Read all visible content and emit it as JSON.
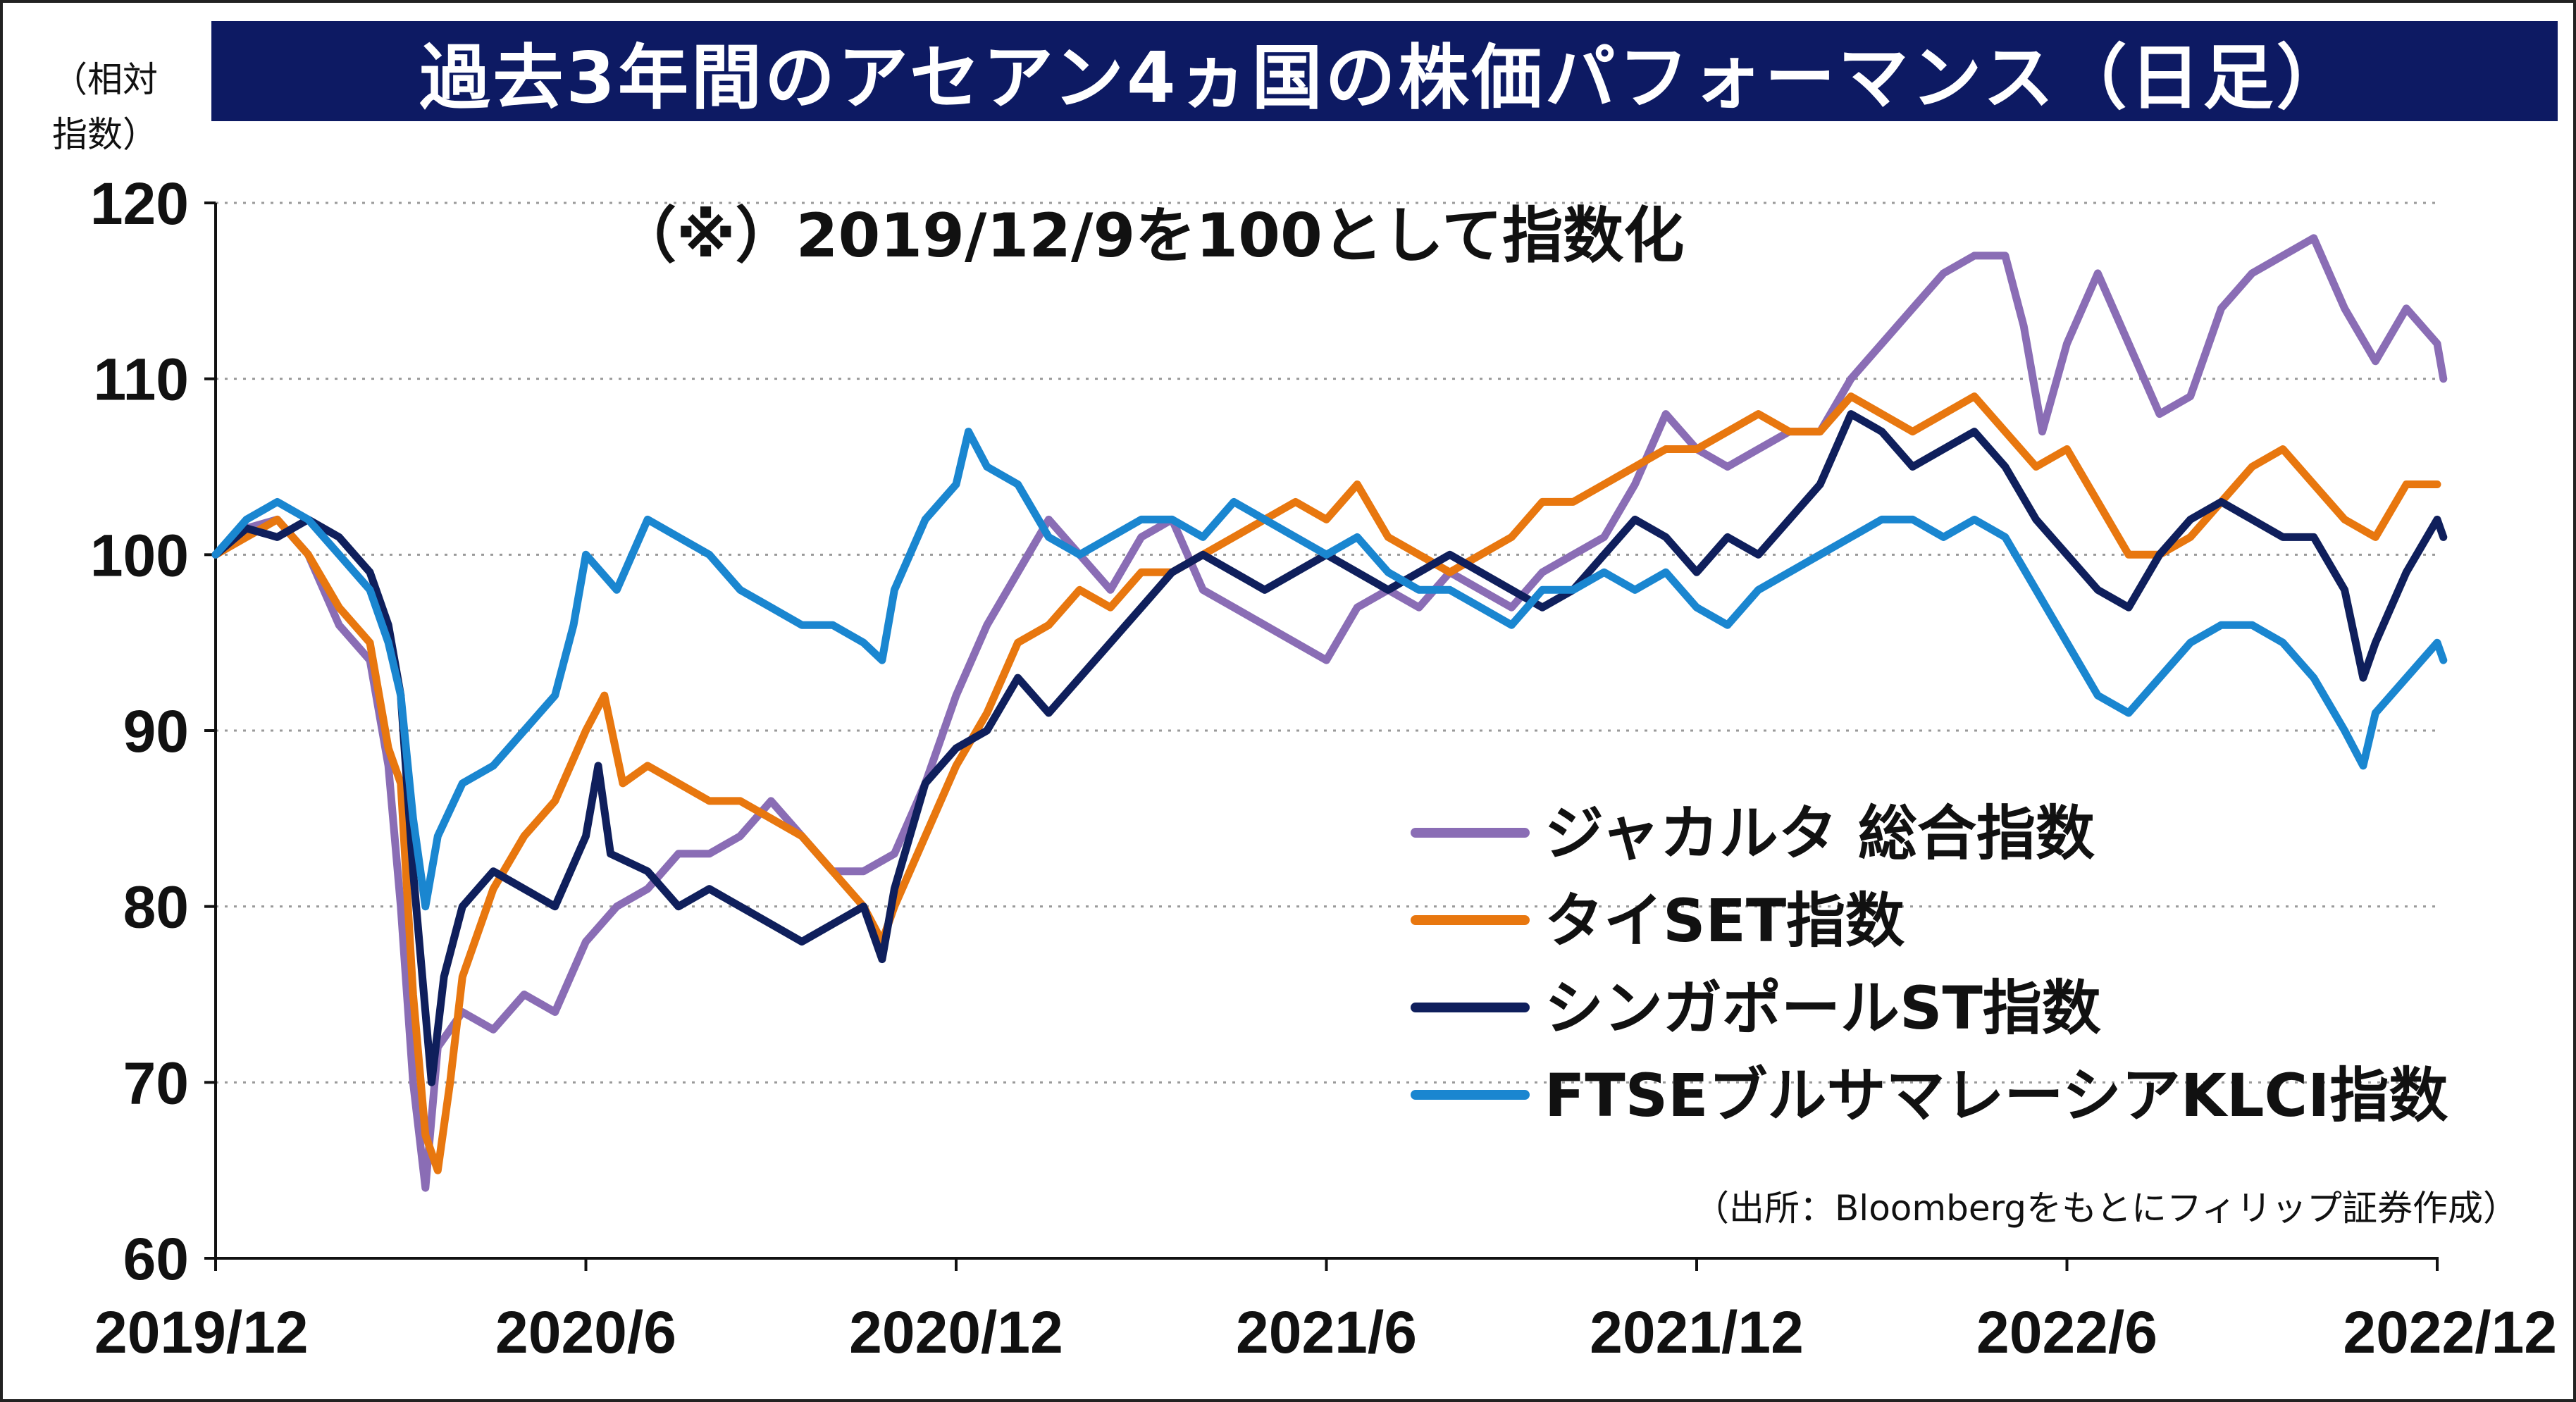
{
  "title": "過去3年間のアセアン4ヵ国の株価パフォーマンス（日足）",
  "unit_label": "（相対\n指数）",
  "note": "（※）2019/12/9を100として指数化",
  "source": "（出所：Bloombergをもとにフィリップ証券作成）",
  "chart_data": {
    "type": "line",
    "ylim": [
      60,
      120
    ],
    "yticks": [
      60,
      70,
      80,
      90,
      100,
      110,
      120
    ],
    "xlim": [
      0,
      36
    ],
    "xtick_labels": [
      "2019/12",
      "2020/6",
      "2020/12",
      "2021/6",
      "2021/12",
      "2022/6",
      "2022/12"
    ],
    "xtick_positions": [
      0,
      6,
      12,
      18,
      24,
      30,
      36
    ],
    "grid": "horizontal dotted",
    "legend_placement": "lower-right",
    "series": [
      {
        "name": "ジャカルタ 総合指数",
        "color": "#8a6db5",
        "points": [
          [
            0,
            100
          ],
          [
            0.5,
            101.5
          ],
          [
            1,
            102
          ],
          [
            1.5,
            100
          ],
          [
            2,
            96
          ],
          [
            2.5,
            94
          ],
          [
            2.8,
            88
          ],
          [
            3,
            80
          ],
          [
            3.2,
            70
          ],
          [
            3.4,
            64
          ],
          [
            3.6,
            72
          ],
          [
            4,
            74
          ],
          [
            4.5,
            73
          ],
          [
            5,
            75
          ],
          [
            5.5,
            74
          ],
          [
            6,
            78
          ],
          [
            6.5,
            80
          ],
          [
            7,
            81
          ],
          [
            7.5,
            83
          ],
          [
            8,
            83
          ],
          [
            8.5,
            84
          ],
          [
            9,
            86
          ],
          [
            9.5,
            84
          ],
          [
            10,
            82
          ],
          [
            10.5,
            82
          ],
          [
            11,
            83
          ],
          [
            11.5,
            87
          ],
          [
            12,
            92
          ],
          [
            12.5,
            96
          ],
          [
            13,
            99
          ],
          [
            13.5,
            102
          ],
          [
            14,
            100
          ],
          [
            14.5,
            98
          ],
          [
            15,
            101
          ],
          [
            15.5,
            102
          ],
          [
            16,
            98
          ],
          [
            16.5,
            97
          ],
          [
            17,
            96
          ],
          [
            17.5,
            95
          ],
          [
            18,
            94
          ],
          [
            18.5,
            97
          ],
          [
            19,
            98
          ],
          [
            19.5,
            97
          ],
          [
            20,
            99
          ],
          [
            20.5,
            98
          ],
          [
            21,
            97
          ],
          [
            21.5,
            99
          ],
          [
            22,
            100
          ],
          [
            22.5,
            101
          ],
          [
            23,
            104
          ],
          [
            23.5,
            108
          ],
          [
            24,
            106
          ],
          [
            24.5,
            105
          ],
          [
            25,
            106
          ],
          [
            25.5,
            107
          ],
          [
            26,
            107
          ],
          [
            26.5,
            110
          ],
          [
            27,
            112
          ],
          [
            27.5,
            114
          ],
          [
            28,
            116
          ],
          [
            28.5,
            117
          ],
          [
            29,
            117
          ],
          [
            29.3,
            113
          ],
          [
            29.6,
            107
          ],
          [
            30,
            112
          ],
          [
            30.5,
            116
          ],
          [
            31,
            112
          ],
          [
            31.5,
            108
          ],
          [
            32,
            109
          ],
          [
            32.5,
            114
          ],
          [
            33,
            116
          ],
          [
            33.5,
            117
          ],
          [
            34,
            118
          ],
          [
            34.5,
            114
          ],
          [
            35,
            111
          ],
          [
            35.5,
            114
          ],
          [
            36,
            112
          ],
          [
            36.1,
            110
          ]
        ]
      },
      {
        "name": "タイSET指数",
        "color": "#e8770f",
        "points": [
          [
            0,
            100
          ],
          [
            0.5,
            101
          ],
          [
            1,
            102
          ],
          [
            1.5,
            100
          ],
          [
            2,
            97
          ],
          [
            2.5,
            95
          ],
          [
            2.8,
            89
          ],
          [
            3,
            87
          ],
          [
            3.2,
            75
          ],
          [
            3.4,
            67
          ],
          [
            3.6,
            65
          ],
          [
            3.8,
            70
          ],
          [
            4,
            76
          ],
          [
            4.5,
            81
          ],
          [
            5,
            84
          ],
          [
            5.5,
            86
          ],
          [
            6,
            90
          ],
          [
            6.3,
            92
          ],
          [
            6.6,
            87
          ],
          [
            7,
            88
          ],
          [
            7.5,
            87
          ],
          [
            8,
            86
          ],
          [
            8.5,
            86
          ],
          [
            9,
            85
          ],
          [
            9.5,
            84
          ],
          [
            10,
            82
          ],
          [
            10.5,
            80
          ],
          [
            10.8,
            78
          ],
          [
            11,
            80
          ],
          [
            11.5,
            84
          ],
          [
            12,
            88
          ],
          [
            12.5,
            91
          ],
          [
            13,
            95
          ],
          [
            13.5,
            96
          ],
          [
            14,
            98
          ],
          [
            14.5,
            97
          ],
          [
            15,
            99
          ],
          [
            15.5,
            99
          ],
          [
            16,
            100
          ],
          [
            16.5,
            101
          ],
          [
            17,
            102
          ],
          [
            17.5,
            103
          ],
          [
            18,
            102
          ],
          [
            18.5,
            104
          ],
          [
            19,
            101
          ],
          [
            19.5,
            100
          ],
          [
            20,
            99
          ],
          [
            20.5,
            100
          ],
          [
            21,
            101
          ],
          [
            21.5,
            103
          ],
          [
            22,
            103
          ],
          [
            22.5,
            104
          ],
          [
            23,
            105
          ],
          [
            23.5,
            106
          ],
          [
            24,
            106
          ],
          [
            24.5,
            107
          ],
          [
            25,
            108
          ],
          [
            25.5,
            107
          ],
          [
            26,
            107
          ],
          [
            26.5,
            109
          ],
          [
            27,
            108
          ],
          [
            27.5,
            107
          ],
          [
            28,
            108
          ],
          [
            28.5,
            109
          ],
          [
            29,
            107
          ],
          [
            29.5,
            105
          ],
          [
            30,
            106
          ],
          [
            30.5,
            103
          ],
          [
            31,
            100
          ],
          [
            31.5,
            100
          ],
          [
            32,
            101
          ],
          [
            32.5,
            103
          ],
          [
            33,
            105
          ],
          [
            33.5,
            106
          ],
          [
            34,
            104
          ],
          [
            34.5,
            102
          ],
          [
            35,
            101
          ],
          [
            35.5,
            104
          ],
          [
            36,
            104
          ]
        ]
      },
      {
        "name": "シンガポールST指数",
        "color": "#0f1f5c",
        "points": [
          [
            0,
            100
          ],
          [
            0.5,
            101.5
          ],
          [
            1,
            101
          ],
          [
            1.5,
            102
          ],
          [
            2,
            101
          ],
          [
            2.5,
            99
          ],
          [
            2.8,
            96
          ],
          [
            3,
            92
          ],
          [
            3.2,
            82
          ],
          [
            3.4,
            74
          ],
          [
            3.5,
            70
          ],
          [
            3.7,
            76
          ],
          [
            4,
            80
          ],
          [
            4.5,
            82
          ],
          [
            5,
            81
          ],
          [
            5.5,
            80
          ],
          [
            6,
            84
          ],
          [
            6.2,
            88
          ],
          [
            6.4,
            83
          ],
          [
            7,
            82
          ],
          [
            7.5,
            80
          ],
          [
            8,
            81
          ],
          [
            8.5,
            80
          ],
          [
            9,
            79
          ],
          [
            9.5,
            78
          ],
          [
            10,
            79
          ],
          [
            10.5,
            80
          ],
          [
            10.8,
            77
          ],
          [
            11,
            81
          ],
          [
            11.5,
            87
          ],
          [
            12,
            89
          ],
          [
            12.5,
            90
          ],
          [
            13,
            93
          ],
          [
            13.5,
            91
          ],
          [
            14,
            93
          ],
          [
            14.5,
            95
          ],
          [
            15,
            97
          ],
          [
            15.5,
            99
          ],
          [
            16,
            100
          ],
          [
            16.5,
            99
          ],
          [
            17,
            98
          ],
          [
            17.5,
            99
          ],
          [
            18,
            100
          ],
          [
            18.5,
            99
          ],
          [
            19,
            98
          ],
          [
            19.5,
            99
          ],
          [
            20,
            100
          ],
          [
            20.5,
            99
          ],
          [
            21,
            98
          ],
          [
            21.5,
            97
          ],
          [
            22,
            98
          ],
          [
            22.5,
            100
          ],
          [
            23,
            102
          ],
          [
            23.5,
            101
          ],
          [
            24,
            99
          ],
          [
            24.5,
            101
          ],
          [
            25,
            100
          ],
          [
            25.5,
            102
          ],
          [
            26,
            104
          ],
          [
            26.5,
            108
          ],
          [
            27,
            107
          ],
          [
            27.5,
            105
          ],
          [
            28,
            106
          ],
          [
            28.5,
            107
          ],
          [
            29,
            105
          ],
          [
            29.5,
            102
          ],
          [
            30,
            100
          ],
          [
            30.5,
            98
          ],
          [
            31,
            97
          ],
          [
            31.5,
            100
          ],
          [
            32,
            102
          ],
          [
            32.5,
            103
          ],
          [
            33,
            102
          ],
          [
            33.5,
            101
          ],
          [
            34,
            101
          ],
          [
            34.5,
            98
          ],
          [
            34.8,
            93
          ],
          [
            35,
            95
          ],
          [
            35.5,
            99
          ],
          [
            36,
            102
          ],
          [
            36.1,
            101
          ]
        ]
      },
      {
        "name": "FTSEブルサマレーシアKLCI指数",
        "color": "#1a86d0",
        "points": [
          [
            0,
            100
          ],
          [
            0.5,
            102
          ],
          [
            1,
            103
          ],
          [
            1.5,
            102
          ],
          [
            2,
            100
          ],
          [
            2.5,
            98
          ],
          [
            2.8,
            95
          ],
          [
            3,
            92
          ],
          [
            3.2,
            85
          ],
          [
            3.4,
            80
          ],
          [
            3.6,
            84
          ],
          [
            4,
            87
          ],
          [
            4.5,
            88
          ],
          [
            5,
            90
          ],
          [
            5.5,
            92
          ],
          [
            5.8,
            96
          ],
          [
            6,
            100
          ],
          [
            6.5,
            98
          ],
          [
            7,
            102
          ],
          [
            7.5,
            101
          ],
          [
            8,
            100
          ],
          [
            8.5,
            98
          ],
          [
            9,
            97
          ],
          [
            9.5,
            96
          ],
          [
            10,
            96
          ],
          [
            10.5,
            95
          ],
          [
            10.8,
            94
          ],
          [
            11,
            98
          ],
          [
            11.5,
            102
          ],
          [
            12,
            104
          ],
          [
            12.2,
            107
          ],
          [
            12.5,
            105
          ],
          [
            13,
            104
          ],
          [
            13.5,
            101
          ],
          [
            14,
            100
          ],
          [
            14.5,
            101
          ],
          [
            15,
            102
          ],
          [
            15.5,
            102
          ],
          [
            16,
            101
          ],
          [
            16.5,
            103
          ],
          [
            17,
            102
          ],
          [
            17.5,
            101
          ],
          [
            18,
            100
          ],
          [
            18.5,
            101
          ],
          [
            19,
            99
          ],
          [
            19.5,
            98
          ],
          [
            20,
            98
          ],
          [
            20.5,
            97
          ],
          [
            21,
            96
          ],
          [
            21.5,
            98
          ],
          [
            22,
            98
          ],
          [
            22.5,
            99
          ],
          [
            23,
            98
          ],
          [
            23.5,
            99
          ],
          [
            24,
            97
          ],
          [
            24.5,
            96
          ],
          [
            25,
            98
          ],
          [
            25.5,
            99
          ],
          [
            26,
            100
          ],
          [
            26.5,
            101
          ],
          [
            27,
            102
          ],
          [
            27.5,
            102
          ],
          [
            28,
            101
          ],
          [
            28.5,
            102
          ],
          [
            29,
            101
          ],
          [
            29.5,
            98
          ],
          [
            30,
            95
          ],
          [
            30.5,
            92
          ],
          [
            31,
            91
          ],
          [
            31.5,
            93
          ],
          [
            32,
            95
          ],
          [
            32.5,
            96
          ],
          [
            33,
            96
          ],
          [
            33.5,
            95
          ],
          [
            34,
            93
          ],
          [
            34.5,
            90
          ],
          [
            34.8,
            88
          ],
          [
            35,
            91
          ],
          [
            35.5,
            93
          ],
          [
            36,
            95
          ],
          [
            36.1,
            94
          ]
        ]
      }
    ]
  }
}
